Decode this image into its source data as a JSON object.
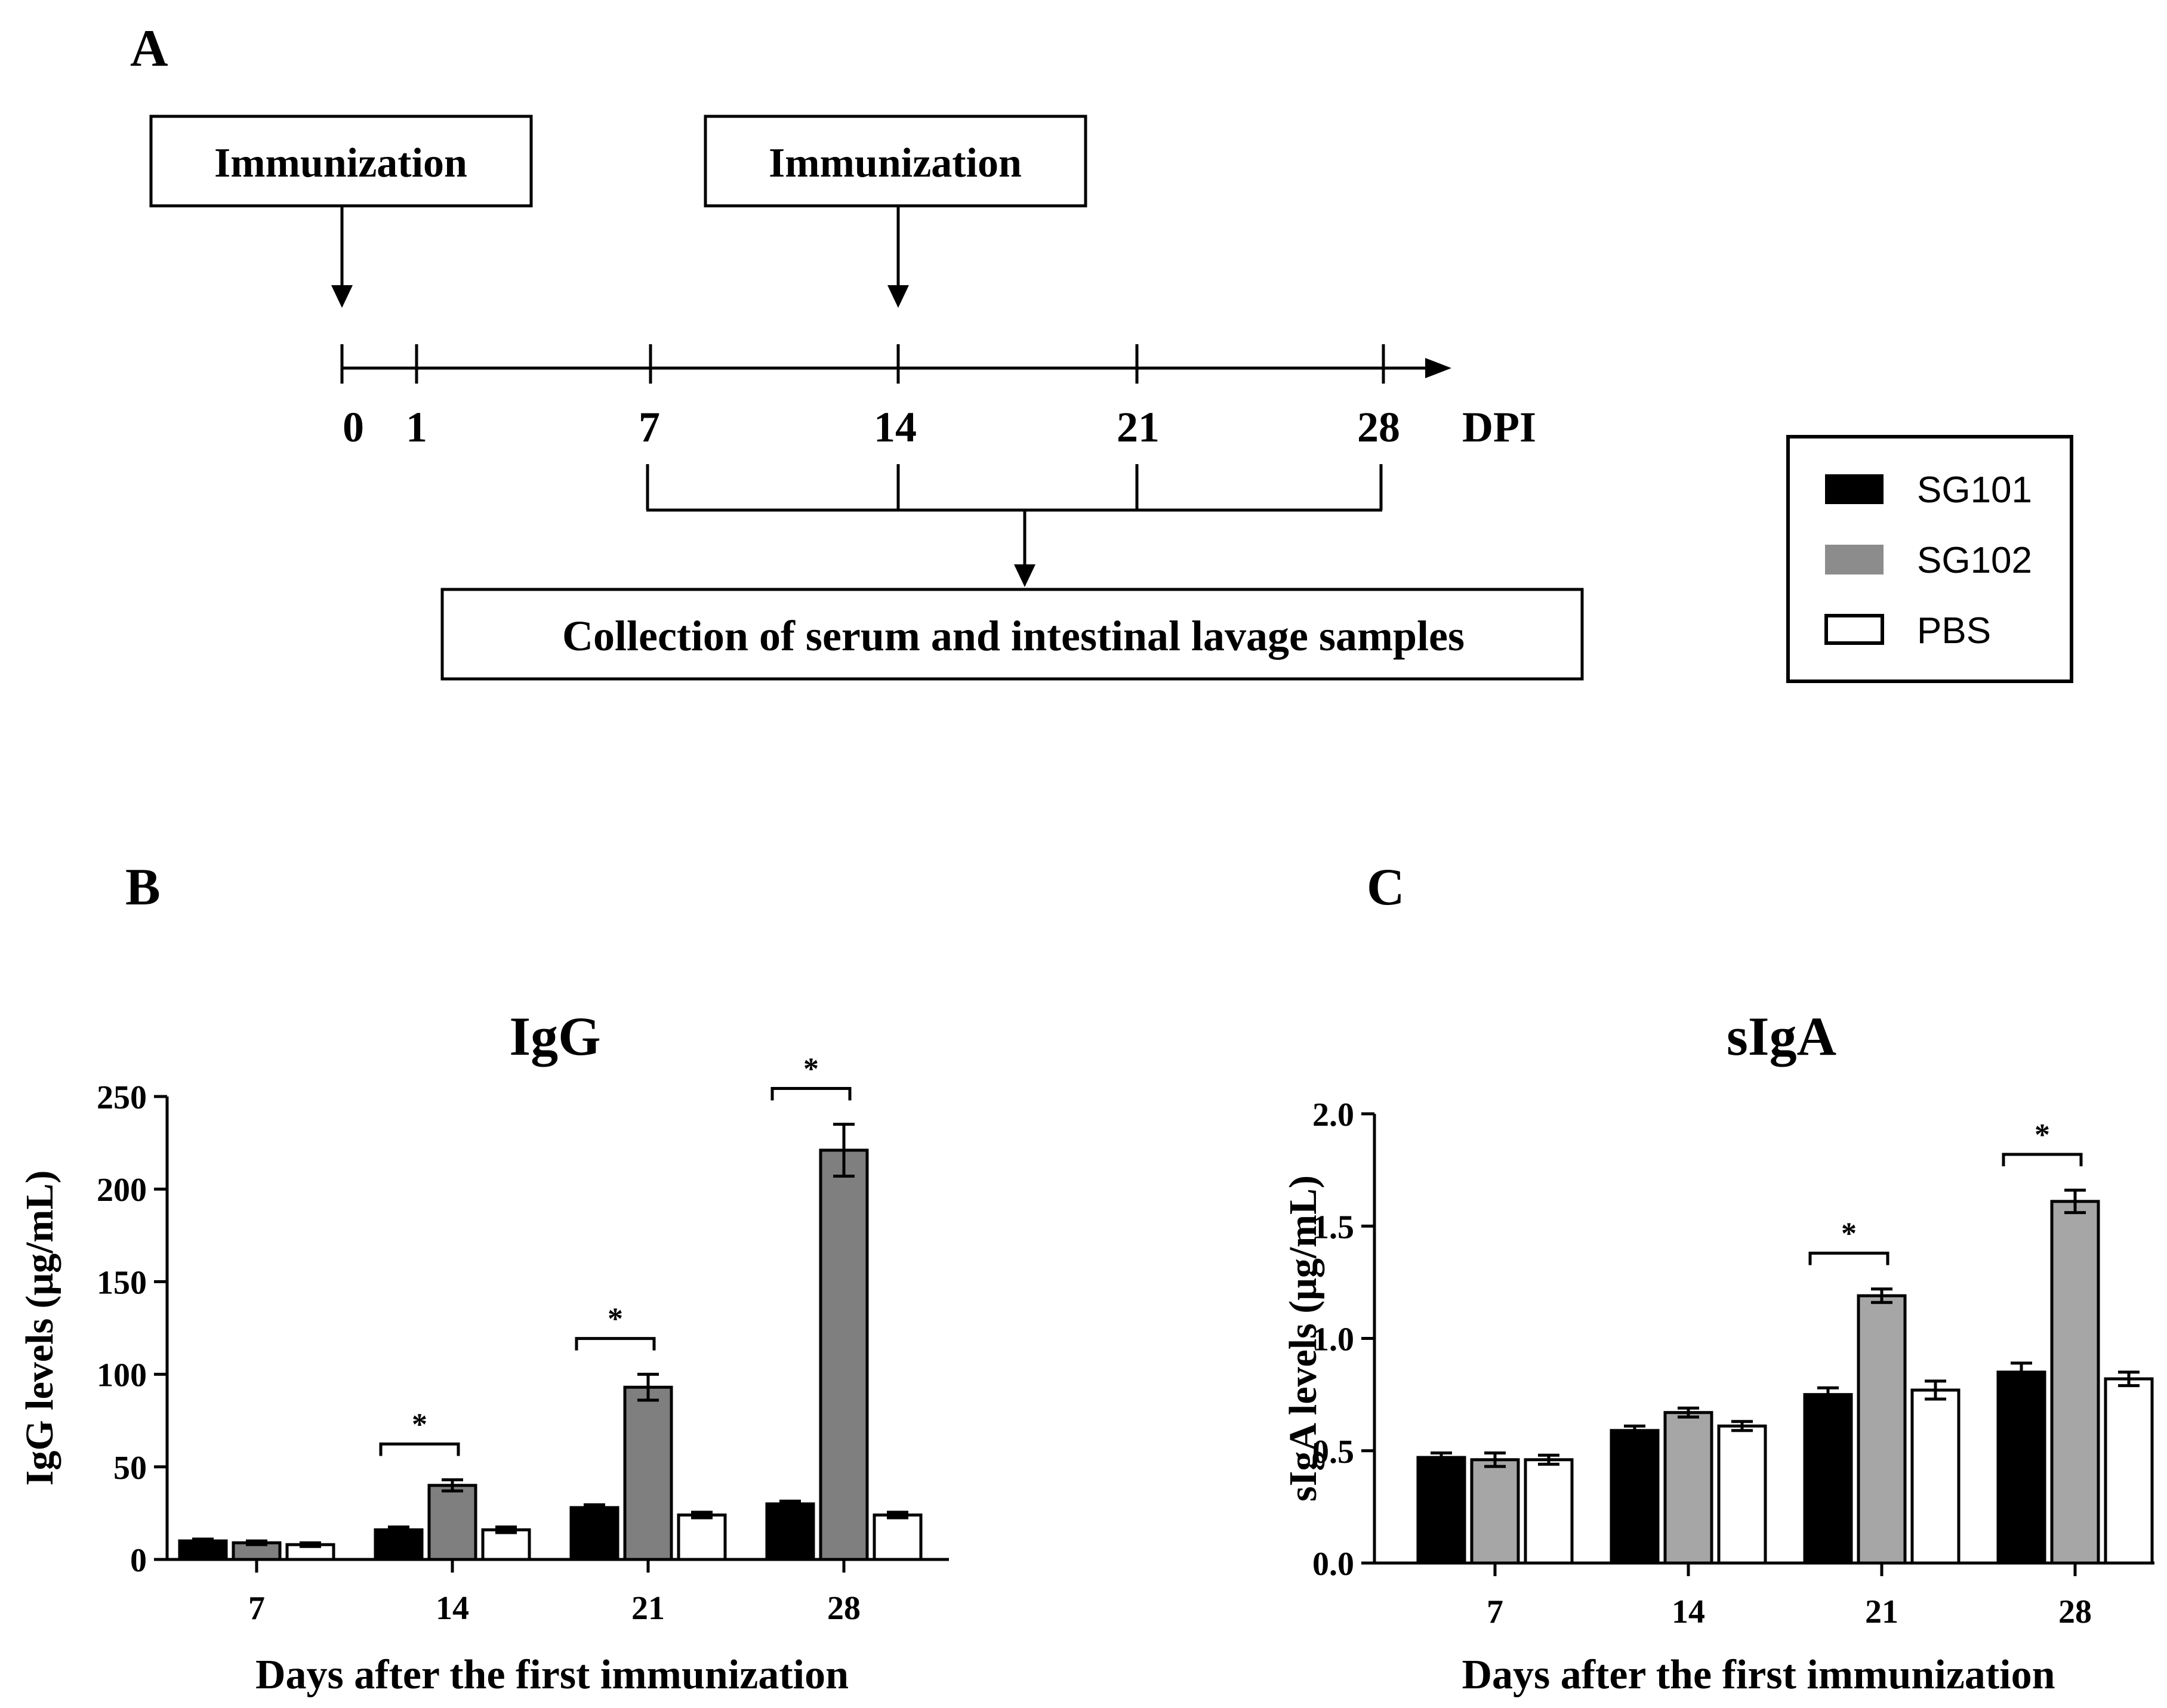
{
  "panel_labels": {
    "a": "A",
    "b": "B",
    "c": "C"
  },
  "timeline": {
    "box_left": "Immunization",
    "box_right": "Immunization",
    "ticks": [
      "0",
      "1",
      "7",
      "14",
      "21",
      "28"
    ],
    "axis_unit": "DPI",
    "collection_label": "Collection of serum and intestinal lavage samples"
  },
  "legend": {
    "items": [
      {
        "label": "SG101",
        "color": "#000000"
      },
      {
        "label": "SG102",
        "color": "#7f7f7f"
      },
      {
        "label": "PBS",
        "color": "#ffffff"
      }
    ]
  },
  "chart_data": [
    {
      "type": "bar",
      "title": "IgG",
      "xlabel": "Days after the first immunization",
      "ylabel": "IgG levels (μg/mL)",
      "categories": [
        "7",
        "14",
        "21",
        "28"
      ],
      "ylim": [
        0,
        250
      ],
      "yticks": [
        "0",
        "50",
        "100",
        "150",
        "200",
        "250"
      ],
      "series": [
        {
          "name": "SG101",
          "values": [
            10,
            16,
            28,
            30
          ],
          "errors": [
            1,
            1.5,
            1.5,
            1.5
          ],
          "color": "#000000"
        },
        {
          "name": "SG102",
          "values": [
            9,
            40,
            93,
            221
          ],
          "errors": [
            1,
            3,
            7,
            14
          ],
          "color": "#7f7f7f"
        },
        {
          "name": "PBS",
          "values": [
            8,
            16,
            24,
            24
          ],
          "errors": [
            1,
            1.5,
            1.5,
            1.5
          ],
          "color": "#ffffff"
        }
      ],
      "significance": [
        {
          "category": "14",
          "label": "*",
          "bracket": [
            0,
            1
          ]
        },
        {
          "category": "21",
          "label": "*",
          "bracket": [
            0,
            1
          ]
        },
        {
          "category": "28",
          "label": "*",
          "bracket": [
            0,
            1
          ]
        }
      ]
    },
    {
      "type": "bar",
      "title": "sIgA",
      "xlabel": "Days after the first immunization",
      "ylabel": "sIgA levels (μg/mL)",
      "categories": [
        "7",
        "14",
        "21",
        "28"
      ],
      "ylim": [
        0,
        2.0
      ],
      "yticks": [
        "0.0",
        "0.5",
        "1.0",
        "1.5",
        "2.0"
      ],
      "series": [
        {
          "name": "SG101",
          "values": [
            0.47,
            0.59,
            0.75,
            0.85
          ],
          "errors": [
            0.02,
            0.02,
            0.03,
            0.04
          ],
          "color": "#000000"
        },
        {
          "name": "SG102",
          "values": [
            0.46,
            0.67,
            1.19,
            1.61
          ],
          "errors": [
            0.03,
            0.02,
            0.03,
            0.05
          ],
          "color": "#a6a6a6"
        },
        {
          "name": "PBS",
          "values": [
            0.46,
            0.61,
            0.77,
            0.82
          ],
          "errors": [
            0.02,
            0.02,
            0.04,
            0.03
          ],
          "color": "#ffffff"
        }
      ],
      "significance": [
        {
          "category": "21",
          "label": "*",
          "bracket": [
            0,
            1
          ]
        },
        {
          "category": "28",
          "label": "*",
          "bracket": [
            0,
            1
          ]
        }
      ]
    }
  ]
}
